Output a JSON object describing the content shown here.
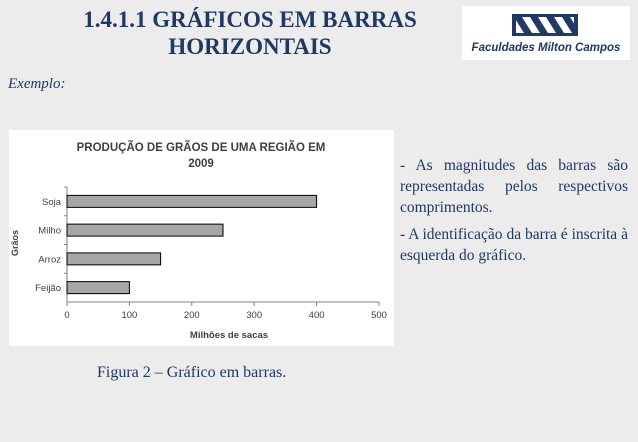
{
  "slide": {
    "title_line1": "1.4.1.1 GRÁFICOS EM BARRAS",
    "title_line2": "HORIZONTAIS",
    "subheading": "Exemplo:",
    "caption": "Figura 2 – Gráfico em barras.",
    "bullets": [
      "- As magnitudes das barras são representadas pelos respectivos comprimentos.",
      "- A identificação da barra é inscrita à esquerda do gráfico."
    ]
  },
  "logo": {
    "text": "Faculdades Milton Campos",
    "color": "#1f3864"
  },
  "chart_data": {
    "type": "bar",
    "orientation": "horizontal",
    "title_line1": "PRODUÇÃO DE GRÃOS DE UMA REGIÃO EM",
    "title_line2": "2009",
    "xlabel": "Milhões de sacas",
    "ylabel": "Grãos",
    "categories": [
      "Soja",
      "Milho",
      "Arroz",
      "Feijão"
    ],
    "values": [
      400,
      250,
      150,
      100
    ],
    "xlim": [
      0,
      500
    ],
    "xticks": [
      0,
      100,
      200,
      300,
      400,
      500
    ],
    "grid": false,
    "legend": "none",
    "bar_color": "#a6a6a6"
  }
}
